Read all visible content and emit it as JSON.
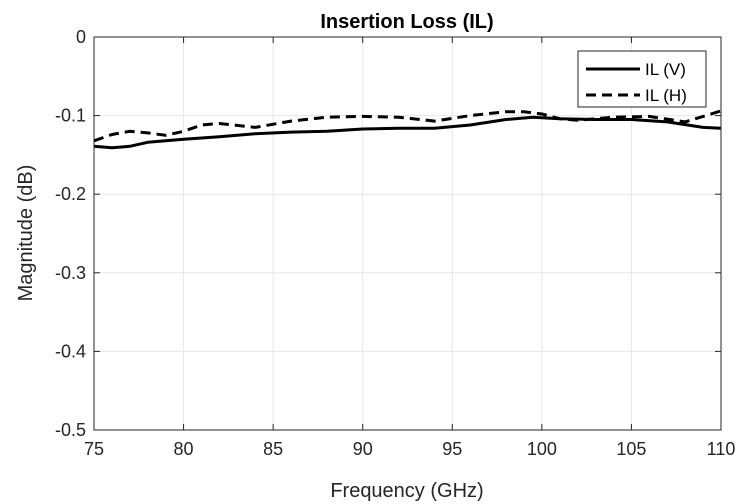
{
  "chart_data": {
    "type": "line",
    "title": "Insertion Loss (IL)",
    "xlabel": "Frequency (GHz)",
    "ylabel": "Magnitude (dB)",
    "xlim": [
      75,
      110
    ],
    "ylim": [
      -0.5,
      0
    ],
    "xticks": [
      75,
      80,
      85,
      90,
      95,
      100,
      105,
      110
    ],
    "yticks": [
      0,
      -0.1,
      -0.2,
      -0.3,
      -0.4,
      -0.5
    ],
    "xtick_labels": [
      "75",
      "80",
      "85",
      "90",
      "95",
      "100",
      "105",
      "110"
    ],
    "ytick_labels": [
      "0",
      "-0.1",
      "-0.2",
      "-0.3",
      "-0.4",
      "-0.5"
    ],
    "grid": true,
    "legend_position": "top-right",
    "series": [
      {
        "name": "IL (V)",
        "style": "solid",
        "color": "#000000",
        "x": [
          75,
          76,
          77,
          78,
          80,
          82,
          84,
          86,
          88,
          90,
          92,
          94,
          96,
          98,
          99.5,
          101,
          103,
          105,
          107,
          109,
          110
        ],
        "y": [
          -0.139,
          -0.141,
          -0.139,
          -0.134,
          -0.13,
          -0.127,
          -0.123,
          -0.121,
          -0.12,
          -0.117,
          -0.116,
          -0.116,
          -0.112,
          -0.105,
          -0.102,
          -0.104,
          -0.105,
          -0.105,
          -0.108,
          -0.115,
          -0.116
        ]
      },
      {
        "name": "IL (H)",
        "style": "dashed",
        "color": "#000000",
        "x": [
          75,
          76,
          77,
          78,
          79,
          80,
          81,
          82,
          84,
          86,
          88,
          90,
          92,
          94,
          96,
          98,
          99,
          100,
          101,
          102,
          104,
          106,
          108,
          109,
          110
        ],
        "y": [
          -0.132,
          -0.124,
          -0.12,
          -0.122,
          -0.125,
          -0.12,
          -0.112,
          -0.11,
          -0.115,
          -0.107,
          -0.102,
          -0.101,
          -0.102,
          -0.107,
          -0.1,
          -0.095,
          -0.095,
          -0.098,
          -0.104,
          -0.106,
          -0.102,
          -0.101,
          -0.108,
          -0.101,
          -0.094
        ]
      }
    ]
  }
}
